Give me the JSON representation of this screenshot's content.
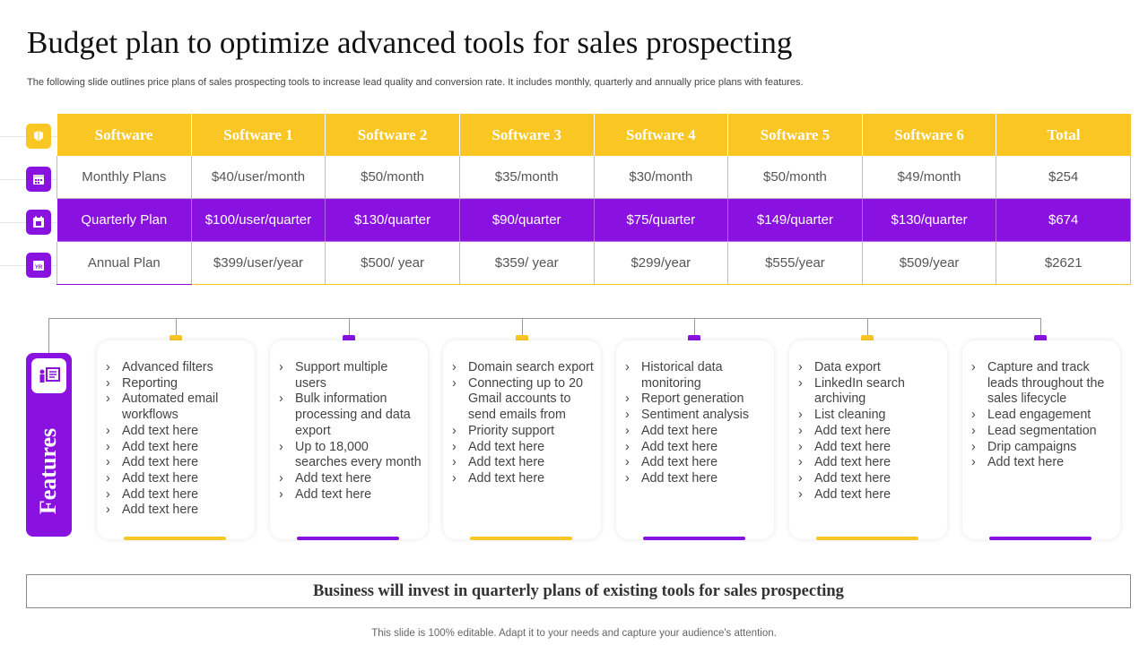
{
  "title": "Budget plan to optimize advanced tools for sales prospecting",
  "subtitle": "The following slide outlines price plans of sales prospecting tools to increase lead quality and conversion rate. It includes monthly, quarterly and annually price plans with features.",
  "table": {
    "headers": [
      "Software",
      "Software 1",
      "Software 2",
      "Software 3",
      "Software 4",
      "Software 5",
      "Software 6",
      "Total"
    ],
    "rows": [
      [
        "Monthly Plans",
        "$40/user/month",
        "$50/month",
        "$35/month",
        "$30/month",
        "$50/month",
        "$49/month",
        "$254"
      ],
      [
        "Quarterly Plan",
        "$100/user/quarter",
        "$130/quarter",
        "$90/quarter",
        "$75/quarter",
        "$149/quarter",
        "$130/quarter",
        "$674"
      ],
      [
        "Annual Plan",
        "$399/user/year",
        "$500/ year",
        "$359/ year",
        "$299/year",
        "$555/year",
        "$509/year",
        "$2621"
      ]
    ]
  },
  "row_icons": [
    "software-icon",
    "calendar-icon",
    "calendar-event-icon",
    "calendar-year-icon"
  ],
  "features_label": "Features",
  "features_icon": "presentation-icon",
  "features": [
    [
      "Advanced filters",
      "Reporting",
      "Automated email workflows",
      "Add text here",
      "Add text here",
      "Add text here",
      "Add text here",
      "Add text here",
      "Add text here"
    ],
    [
      "Support multiple users",
      "Bulk information processing and data export",
      "Up to 18,000 searches every month",
      "Add text here",
      "Add text here"
    ],
    [
      "Domain search export",
      "Connecting up to 20 Gmail accounts to send emails from",
      "Priority support",
      "Add text here",
      "Add text here",
      "Add text here"
    ],
    [
      "Historical data monitoring",
      "Report generation",
      "Sentiment analysis",
      "Add text here",
      "Add text here",
      "Add text here",
      "Add text here"
    ],
    [
      "Data export",
      "LinkedIn search archiving",
      "List cleaning",
      "Add text here",
      "Add text here",
      "Add text here",
      "Add text here",
      "Add text here"
    ],
    [
      "Capture and track leads throughout the sales lifecycle",
      "Lead engagement",
      "Lead segmentation",
      "Drip campaigns",
      "Add text here"
    ]
  ],
  "summary": "Business will invest in quarterly plans of existing tools for sales prospecting",
  "footer": "This slide is 100% editable. Adapt it to your needs and capture your audience's attention.",
  "colors": {
    "yellow": "#F9C623",
    "purple": "#8A12E0"
  }
}
